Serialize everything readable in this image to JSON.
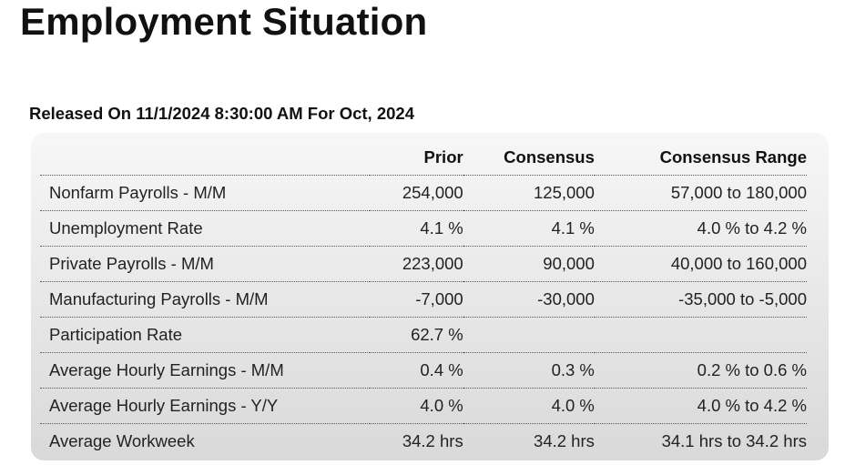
{
  "title": "Employment Situation",
  "released": "Released On 11/1/2024 8:30:00 AM For Oct, 2024",
  "table": {
    "headers": [
      "",
      "Prior",
      "Consensus",
      "Consensus Range"
    ],
    "rows": [
      {
        "name": "Nonfarm Payrolls - M/M",
        "prior": "254,000",
        "consensus": "125,000",
        "range": "57,000  to 180,000"
      },
      {
        "name": "Unemployment Rate",
        "prior": "4.1 %",
        "consensus": "4.1 %",
        "range": "4.0 % to 4.2 %"
      },
      {
        "name": "Private Payrolls - M/M",
        "prior": "223,000",
        "consensus": "90,000",
        "range": "40,000  to 160,000"
      },
      {
        "name": "Manufacturing Payrolls - M/M",
        "prior": "-7,000",
        "consensus": "-30,000",
        "range": "-35,000  to -5,000"
      },
      {
        "name": "Participation Rate",
        "prior": "62.7 %",
        "consensus": "",
        "range": ""
      },
      {
        "name": "Average Hourly Earnings - M/M",
        "prior": "0.4 %",
        "consensus": "0.3 %",
        "range": "0.2 % to 0.6 %"
      },
      {
        "name": "Average Hourly Earnings - Y/Y",
        "prior": "4.0 %",
        "consensus": "4.0 %",
        "range": "4.0 % to 4.2 %"
      },
      {
        "name": "Average Workweek",
        "prior": "34.2 hrs",
        "consensus": "34.2 hrs",
        "range": "34.1 hrs to 34.2 hrs"
      }
    ]
  }
}
